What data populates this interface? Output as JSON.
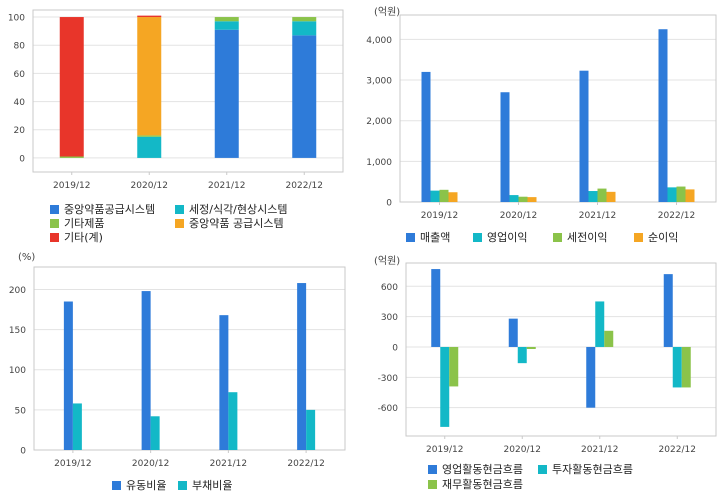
{
  "charts": [
    {
      "id": "p1",
      "chart_data": {
        "type": "bar",
        "stacked": true,
        "unit": "",
        "categories": [
          "2019/12",
          "2020/12",
          "2021/12",
          "2022/12"
        ],
        "ylim": [
          -10,
          105
        ],
        "yticks": [
          0,
          20,
          40,
          60,
          80,
          100
        ],
        "series": [
          {
            "name": "중앙약품공급시스템",
            "color": "#2e7bd9",
            "values": [
              0,
              0,
              91,
              87
            ]
          },
          {
            "name": "세정/식각/현상시스템",
            "color": "#13b8c7",
            "values": [
              0,
              15,
              6,
              10
            ]
          },
          {
            "name": "기타제품",
            "color": "#8bc34a",
            "values": [
              1,
              1,
              3,
              3
            ]
          },
          {
            "name": "중앙약품 공급시스템",
            "color": "#f5a623",
            "values": [
              0,
              84,
              0,
              0
            ]
          },
          {
            "name": "기타(계)",
            "color": "#e8352a",
            "values": [
              99,
              1,
              0,
              0
            ]
          }
        ]
      }
    },
    {
      "id": "p2",
      "chart_data": {
        "type": "bar",
        "unit": "(억원)",
        "categories": [
          "2019/12",
          "2020/12",
          "2021/12",
          "2022/12"
        ],
        "ylim": [
          0,
          4600
        ],
        "yticks": [
          0,
          1000,
          2000,
          3000,
          4000
        ],
        "yticklabels": [
          "0",
          "1,000",
          "2,000",
          "3,000",
          "4,000"
        ],
        "series": [
          {
            "name": "매출액",
            "color": "#2e7bd9",
            "values": [
              3200,
              2700,
              3230,
              4250
            ]
          },
          {
            "name": "영업이익",
            "color": "#13b8c7",
            "values": [
              280,
              170,
              270,
              360
            ]
          },
          {
            "name": "세전이익",
            "color": "#8bc34a",
            "values": [
              300,
              130,
              330,
              380
            ]
          },
          {
            "name": "순이익",
            "color": "#f5a623",
            "values": [
              240,
              120,
              250,
              310
            ]
          }
        ]
      }
    },
    {
      "id": "p3",
      "chart_data": {
        "type": "bar",
        "unit": "(%)",
        "categories": [
          "2019/12",
          "2020/12",
          "2021/12",
          "2022/12"
        ],
        "ylim": [
          0,
          228
        ],
        "yticks": [
          0,
          50,
          100,
          150,
          200
        ],
        "series": [
          {
            "name": "유동비율",
            "color": "#2e7bd9",
            "values": [
              185,
              198,
              168,
              208
            ]
          },
          {
            "name": "부채비율",
            "color": "#13b8c7",
            "values": [
              58,
              42,
              72,
              50
            ]
          }
        ]
      }
    },
    {
      "id": "p4",
      "chart_data": {
        "type": "bar",
        "unit": "(억원)",
        "categories": [
          "2019/12",
          "2020/12",
          "2021/12",
          "2022/12"
        ],
        "ylim": [
          -880,
          830
        ],
        "yticks": [
          -600,
          -300,
          0,
          300,
          600
        ],
        "series": [
          {
            "name": "영업활동현금흐름",
            "color": "#2e7bd9",
            "values": [
              770,
              280,
              -600,
              720
            ]
          },
          {
            "name": "투자활동현금흐름",
            "color": "#13b8c7",
            "values": [
              -790,
              -160,
              450,
              -400
            ]
          },
          {
            "name": "재무활동현금흐름",
            "color": "#8bc34a",
            "values": [
              -390,
              -20,
              160,
              -400
            ]
          }
        ]
      }
    }
  ]
}
